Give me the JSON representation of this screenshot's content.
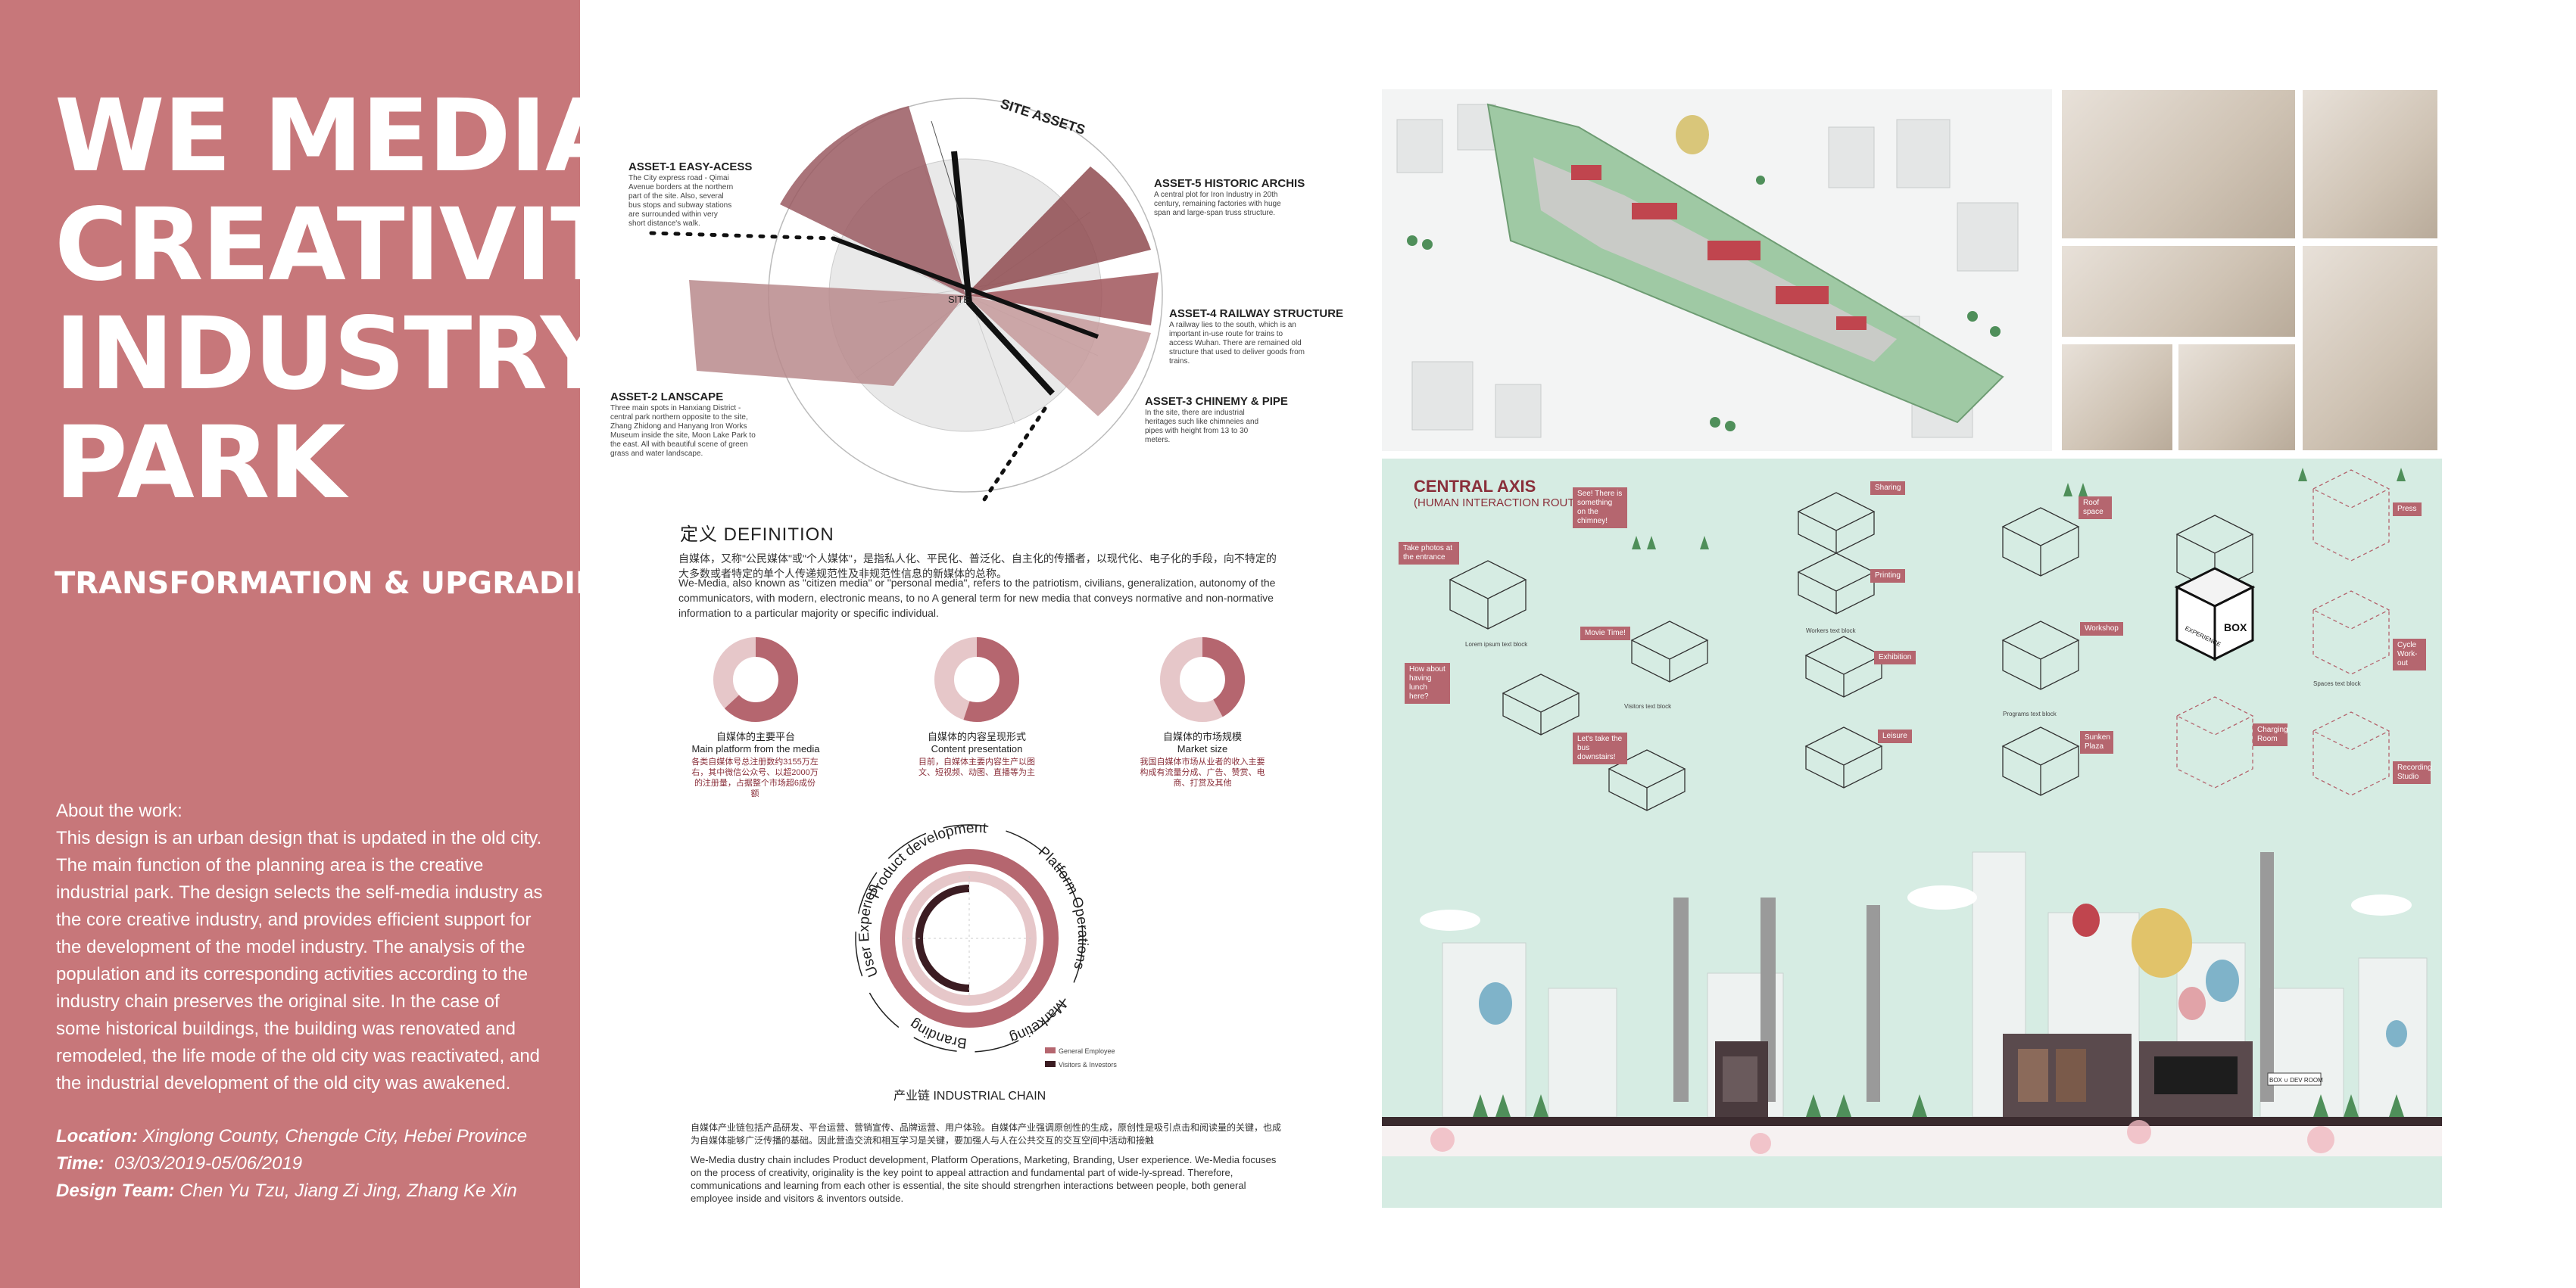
{
  "left_panel": {
    "title_lines": [
      "WE MEDIA",
      "CREATIVITY",
      "INDUSTRY",
      "PARK"
    ],
    "subtitle": "TRANSFORMATION & UPGRADING",
    "about_heading": "About the work:",
    "about_text": "This design is an urban design that is updated in the old city. The main function of the planning area is the creative industrial park. The design selects the self-media industry as the core creative industry, and provides efficient support for the development of the model industry. The analysis of the population and its corresponding activities according to the industry chain preserves the original site. In the case of some historical buildings, the building was renovated and remodeled, the life mode of the old city was reactivated, and the industrial development of the old city was awakened.",
    "location_label": "Location:",
    "location_value": "Xinglong County, Chengde City, Hebei Province",
    "time_label": "Time:",
    "time_value": "03/03/2019-05/06/2019",
    "team_label": "Design Team:",
    "team_value": "Chen Yu Tzu, Jiang Zi Jing, Zhang Ke Xin"
  },
  "site_assets": {
    "title": "SITE ASSETS",
    "center_label": "SITE",
    "asset1_title": "ASSET-1 EASY-ACESS",
    "asset1_desc": "The City express road - Qimai Avenue borders at the northern part of the site. Also, several bus stops and subway stations are surrounded within very short distance's walk.",
    "asset2_title": "ASSET-2 LANSCAPE",
    "asset2_desc": "Three main spots in Hanxiang District - central park northern opposite to the site, Zhang Zhidong and Hanyang Iron Works Museum inside the site, Moon Lake Park to the east. All with beautiful scene of green grass and water landscape.",
    "asset3_title": "ASSET-3 CHINEMY & PIPE",
    "asset3_desc": "In the site, there are industrial heritages such like chimneies and pipes with height from 13 to 30 meters.",
    "asset4_title": "ASSET-4 RAILWAY STRUCTURE",
    "asset4_desc": "A railway lies to the south, which is an important in-use route for trains to access Wuhan. There are remained old structure that used to deliver goods from trains.",
    "asset5_title": "ASSET-5 HISTORIC ARCHIS",
    "asset5_desc": "A central plot for Iron Industry in 20th century, remaining factories with huge span and large-span truss structure."
  },
  "definition": {
    "heading": "定义  DEFINITION",
    "cn": "自媒体，又称\"公民媒体\"或\"个人媒体\"，是指私人化、平民化、普泛化、自主化的传播者，以现代化、电子化的手段，向不特定的大多数或者特定的单个人传递规范性及非规范性信息的新媒体的总称。",
    "en": "We-Media, also known as \"citizen media\" or \"personal media\", refers to the patriotism, civilians, generalization, autonomy of the communicators, with modern, electronic means, to no A general term for new media that conveys normative and non-normative information to a particular majority or specific individual."
  },
  "donuts": [
    {
      "cn": "自媒体的主要平台",
      "en": "Main platform from the media",
      "note": "各类自媒体号总注册数约3155万左右，其中微信公众号、以超2000万的注册量，占据整个市场超6成份额",
      "value": 0.63
    },
    {
      "cn": "自媒体的内容呈现形式",
      "en": "Content presentation",
      "note": "目前，自媒体主要内容生产以图文、短视频、动图、直播等为主",
      "value": 0.55
    },
    {
      "cn": "自媒体的市场规模",
      "en": "Market size",
      "note": "我国自媒体市场从业者的收入主要构成有流量分成、广告、赞赏、电商、打赏及其他",
      "value": 0.42
    }
  ],
  "chain": {
    "labels": [
      "Product development",
      "Platform Operations",
      "Marketing",
      "Branding",
      "User Experience"
    ],
    "caption": "产业链  INDUSTRIAL CHAIN",
    "legend1": "General Employee",
    "legend2": "Visitors & Investors"
  },
  "bottom_text": {
    "cn": "自媒体产业链包括产品研发、平台运营、营销宣传、品牌运营、用户体验。自媒体产业强调原创性的生成，原创性是吸引点击和阅读量的关键，也成为自媒体能够广泛传播的基础。因此营造交流和相互学习是关键，要加强人与人在公共交互的交互空间中活动和接触",
    "en": "We-Media dustry chain includes Product development, Platform Operations, Marketing, Branding, User experience. We-Media focuses on the process of creativity, originality is the key point to appeal attraction and fundamental part of wide-ly-spread. Therefore, communications and learning from each other is essential, the site should strengrhen interactions between people, both general employee inside and visitors & inventors outside."
  },
  "central_axis": {
    "title": "CENTRAL AXIS",
    "subtitle": "(HUMAN INTERACTION ROUTE)",
    "tags": [
      "Take photos at the entrance",
      "See! There is something on the chimney!",
      "Movie Time!",
      "How about having lunch here?",
      "Let's take the bus downstairs!",
      "Sharing",
      "Printing",
      "Exhibition",
      "Leisure",
      "Roof space",
      "Workshop",
      "Sunken Plaza",
      "Press",
      "Cycle Work-out",
      "Charging Room",
      "Recording Studio"
    ],
    "box_label": "BOX",
    "box_label2": "EXPERIENCE",
    "billboard": "BOX ∪ DEV ROOM"
  },
  "colors": {
    "panel": "#c7777a",
    "accent": "#8a2f3a",
    "mint": "#d6ece3",
    "donut_dark": "#b5666f",
    "donut_light": "#e6c7c9"
  }
}
